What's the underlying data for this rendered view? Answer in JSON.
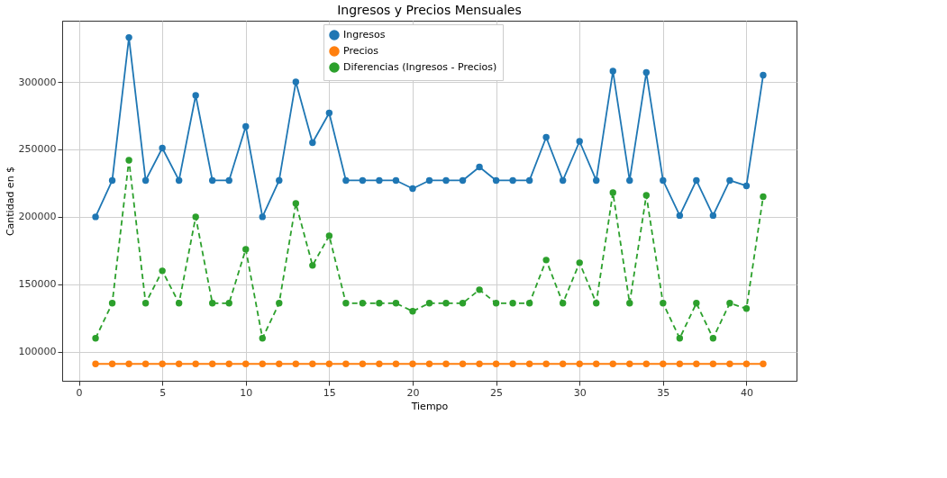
{
  "chart_data": {
    "type": "line",
    "title": "Ingresos y Precios Mensuales",
    "xlabel": "Tiempo",
    "ylabel": "Cantidad en $",
    "x": [
      1,
      2,
      3,
      4,
      5,
      6,
      7,
      8,
      9,
      10,
      11,
      12,
      13,
      14,
      15,
      16,
      17,
      18,
      19,
      20,
      21,
      22,
      23,
      24,
      25,
      26,
      27,
      28,
      29,
      30,
      31,
      32,
      33,
      34,
      35,
      36,
      37,
      38,
      39,
      40,
      41
    ],
    "series": [
      {
        "name": "Ingresos",
        "color": "#1f77b4",
        "line_style": "solid",
        "values": [
          200000,
          227000,
          333000,
          227000,
          251000,
          227000,
          290000,
          227000,
          227000,
          267000,
          200000,
          227000,
          300000,
          255000,
          277000,
          227000,
          227000,
          227000,
          227000,
          221000,
          227000,
          227000,
          227000,
          237000,
          227000,
          227000,
          227000,
          259000,
          227000,
          256000,
          227000,
          308000,
          227000,
          307000,
          227000,
          201000,
          227000,
          201000,
          227000,
          223000,
          305000
        ]
      },
      {
        "name": "Precios",
        "color": "#ff7f0e",
        "line_style": "solid",
        "values": [
          91000,
          91000,
          91000,
          91000,
          91000,
          91000,
          91000,
          91000,
          91000,
          91000,
          91000,
          91000,
          91000,
          91000,
          91000,
          91000,
          91000,
          91000,
          91000,
          91000,
          91000,
          91000,
          91000,
          91000,
          91000,
          91000,
          91000,
          91000,
          91000,
          91000,
          91000,
          91000,
          91000,
          91000,
          91000,
          91000,
          91000,
          91000,
          91000,
          91000,
          91000
        ]
      },
      {
        "name": "Diferencias (Ingresos - Precios)",
        "color": "#2ca02c",
        "line_style": "dashed",
        "values": [
          110000,
          136000,
          242000,
          136000,
          160000,
          136000,
          200000,
          136000,
          136000,
          176000,
          110000,
          136000,
          210000,
          164000,
          186000,
          136000,
          136000,
          136000,
          136000,
          130000,
          136000,
          136000,
          136000,
          146000,
          136000,
          136000,
          136000,
          168000,
          136000,
          166000,
          136000,
          218000,
          136000,
          216000,
          136000,
          110000,
          136000,
          110000,
          136000,
          132000,
          215000
        ]
      }
    ],
    "xlim": [
      -1,
      43
    ],
    "xticks": [
      0,
      5,
      10,
      15,
      20,
      25,
      30,
      35,
      40
    ],
    "ylim": [
      78500,
      345400
    ],
    "yticks": [
      100000,
      150000,
      200000,
      250000,
      300000
    ],
    "grid": true,
    "legend": "top",
    "marker": "circle"
  }
}
